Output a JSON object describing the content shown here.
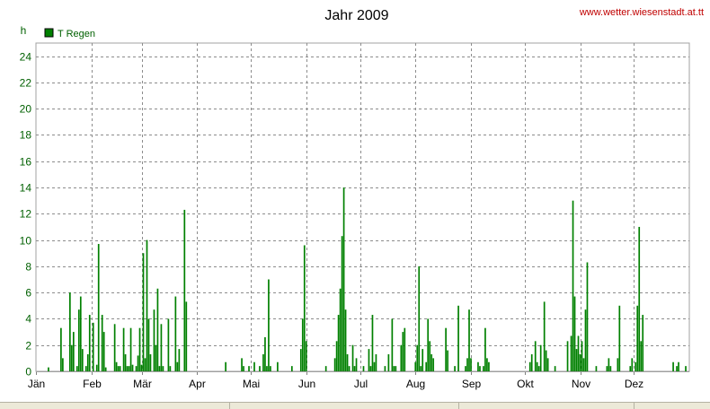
{
  "chart_data": {
    "type": "bar",
    "title": "Jahr 2009",
    "source_label": "www.wetter.wiesenstadt.at.tt",
    "ylabel": "h",
    "legend": {
      "label": "T Regen",
      "position": "top-left"
    },
    "ylim": [
      0,
      25
    ],
    "yticks": [
      0,
      2,
      4,
      6,
      8,
      10,
      12,
      14,
      16,
      18,
      20,
      22,
      24
    ],
    "xlim": [
      1,
      366
    ],
    "month_ticks": [
      {
        "label": "Jän",
        "day": 1
      },
      {
        "label": "Feb",
        "day": 32
      },
      {
        "label": "Mär",
        "day": 60
      },
      {
        "label": "Apr",
        "day": 91
      },
      {
        "label": "Mai",
        "day": 121
      },
      {
        "label": "Jun",
        "day": 152
      },
      {
        "label": "Jul",
        "day": 182
      },
      {
        "label": "Aug",
        "day": 213
      },
      {
        "label": "Sep",
        "day": 244
      },
      {
        "label": "Okt",
        "day": 274
      },
      {
        "label": "Nov",
        "day": 305
      },
      {
        "label": "Dez",
        "day": 335
      }
    ],
    "grid": true,
    "colors": {
      "bar": "#008000",
      "grid": "#8c8c8c",
      "text_green": "#006000",
      "source": "#c00000"
    },
    "series": [
      {
        "name": "T Regen",
        "points": [
          [
            8,
            0.3
          ],
          [
            15,
            3.3
          ],
          [
            16,
            1
          ],
          [
            20,
            6
          ],
          [
            21,
            2
          ],
          [
            22,
            3
          ],
          [
            24,
            0.4
          ],
          [
            25,
            4.7
          ],
          [
            26,
            5.7
          ],
          [
            27,
            1.7
          ],
          [
            29,
            0.4
          ],
          [
            30,
            1.3
          ],
          [
            31,
            4.3
          ],
          [
            33,
            3.7
          ],
          [
            35,
            0.5
          ],
          [
            36,
            9.7
          ],
          [
            38,
            4.3
          ],
          [
            39,
            3
          ],
          [
            40,
            0.3
          ],
          [
            45,
            3.6
          ],
          [
            46,
            0.7
          ],
          [
            47,
            0.4
          ],
          [
            48,
            0.4
          ],
          [
            50,
            3.3
          ],
          [
            51,
            1.3
          ],
          [
            52,
            0.4
          ],
          [
            53,
            0.4
          ],
          [
            54,
            3.3
          ],
          [
            55,
            0.5
          ],
          [
            57,
            0.4
          ],
          [
            58,
            1.2
          ],
          [
            59,
            3.3
          ],
          [
            60,
            0.5
          ],
          [
            61,
            9
          ],
          [
            62,
            1
          ],
          [
            63,
            10
          ],
          [
            64,
            4
          ],
          [
            65,
            1.3
          ],
          [
            67,
            4.7
          ],
          [
            68,
            2
          ],
          [
            69,
            6.3
          ],
          [
            70,
            0.4
          ],
          [
            71,
            3.6
          ],
          [
            72,
            0.4
          ],
          [
            75,
            4
          ],
          [
            76,
            0.4
          ],
          [
            79,
            5.7
          ],
          [
            80,
            0.7
          ],
          [
            81,
            1.7
          ],
          [
            84,
            12.3
          ],
          [
            85,
            5.3
          ],
          [
            107,
            0.7
          ],
          [
            116,
            1
          ],
          [
            117,
            0.4
          ],
          [
            120,
            0.4
          ],
          [
            123,
            0.7
          ],
          [
            126,
            0.4
          ],
          [
            128,
            1.3
          ],
          [
            129,
            2.6
          ],
          [
            130,
            0.4
          ],
          [
            131,
            7
          ],
          [
            132,
            0.4
          ],
          [
            136,
            0.7
          ],
          [
            144,
            0.4
          ],
          [
            149,
            1.7
          ],
          [
            150,
            4
          ],
          [
            151,
            9.6
          ],
          [
            152,
            2.3
          ],
          [
            163,
            0.4
          ],
          [
            168,
            1
          ],
          [
            169,
            2.3
          ],
          [
            170,
            4.3
          ],
          [
            171,
            6.3
          ],
          [
            172,
            10.3
          ],
          [
            173,
            14
          ],
          [
            174,
            4.7
          ],
          [
            175,
            1.3
          ],
          [
            176,
            0.4
          ],
          [
            178,
            2
          ],
          [
            179,
            0.4
          ],
          [
            180,
            1
          ],
          [
            184,
            0.4
          ],
          [
            187,
            1.7
          ],
          [
            188,
            0.4
          ],
          [
            189,
            4.3
          ],
          [
            190,
            0.7
          ],
          [
            191,
            1.3
          ],
          [
            196,
            0.4
          ],
          [
            198,
            1.3
          ],
          [
            200,
            4
          ],
          [
            201,
            0.4
          ],
          [
            202,
            0.4
          ],
          [
            205,
            2
          ],
          [
            206,
            3
          ],
          [
            207,
            3.3
          ],
          [
            213,
            0.7
          ],
          [
            214,
            2
          ],
          [
            215,
            8
          ],
          [
            216,
            0.4
          ],
          [
            217,
            1.7
          ],
          [
            219,
            0.7
          ],
          [
            220,
            4
          ],
          [
            221,
            2.3
          ],
          [
            222,
            1.3
          ],
          [
            223,
            1
          ],
          [
            230,
            3.3
          ],
          [
            231,
            1.6
          ],
          [
            235,
            0.4
          ],
          [
            237,
            5
          ],
          [
            241,
            0.4
          ],
          [
            242,
            1
          ],
          [
            243,
            4.7
          ],
          [
            244,
            1
          ],
          [
            248,
            0.7
          ],
          [
            249,
            0.4
          ],
          [
            251,
            0.4
          ],
          [
            252,
            3.3
          ],
          [
            253,
            1
          ],
          [
            254,
            0.7
          ],
          [
            277,
            0.7
          ],
          [
            278,
            1.3
          ],
          [
            280,
            2.3
          ],
          [
            281,
            0.7
          ],
          [
            282,
            0.4
          ],
          [
            283,
            2
          ],
          [
            285,
            5.3
          ],
          [
            286,
            1.6
          ],
          [
            287,
            1
          ],
          [
            291,
            0.4
          ],
          [
            298,
            2.3
          ],
          [
            300,
            2.7
          ],
          [
            301,
            13
          ],
          [
            302,
            5.7
          ],
          [
            303,
            1.7
          ],
          [
            304,
            2.7
          ],
          [
            305,
            1.3
          ],
          [
            306,
            2.3
          ],
          [
            307,
            1
          ],
          [
            308,
            4.7
          ],
          [
            309,
            8.3
          ],
          [
            314,
            0.4
          ],
          [
            320,
            0.4
          ],
          [
            321,
            1
          ],
          [
            322,
            0.4
          ],
          [
            326,
            1
          ],
          [
            327,
            5
          ],
          [
            333,
            0.4
          ],
          [
            334,
            1
          ],
          [
            336,
            0.7
          ],
          [
            337,
            5
          ],
          [
            338,
            11
          ],
          [
            339,
            2.3
          ],
          [
            340,
            4.3
          ],
          [
            357,
            0.7
          ],
          [
            359,
            0.4
          ],
          [
            360,
            0.7
          ],
          [
            364,
            0.4
          ]
        ]
      }
    ]
  }
}
